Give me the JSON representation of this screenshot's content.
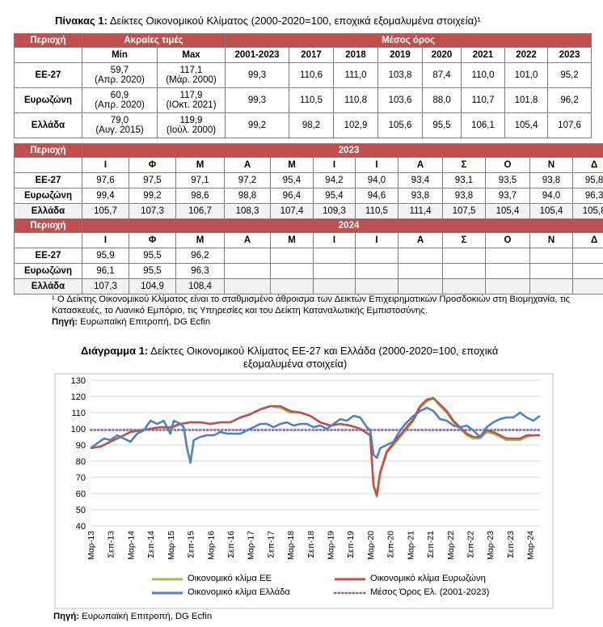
{
  "table": {
    "title_prefix": "Πίνακας 1:",
    "title_text": " Δείκτες Οικονομικού Κλίματος (2000-2020=100, εποχικά εξομαλυμένα στοιχεία)¹",
    "header": {
      "region": "Περιοχή",
      "extremes": "Ακραίες τιμές",
      "average": "Μέσος όρος"
    },
    "subheader": [
      "Min",
      "Max",
      "2001-2023",
      "2017",
      "2018",
      "2019",
      "2020",
      "2021",
      "2022",
      "2023"
    ],
    "rows": [
      {
        "region": "ΕΕ-27",
        "min_val": "59,7",
        "min_date": "(Απρ. 2020)",
        "max_val": "117,1",
        "max_date": "(Μάρ. 2000)",
        "values": [
          "99,3",
          "110,6",
          "111,0",
          "103,8",
          "87,4",
          "110,0",
          "101,0",
          "95,2"
        ]
      },
      {
        "region": "Ευρωζώνη",
        "min_val": "60,9",
        "min_date": "(Απρ. 2020)",
        "max_val": "117,9",
        "max_date": "(IΟκτ. 2021)",
        "values": [
          "99,3",
          "110,5",
          "110,8",
          "103,6",
          "88,0",
          "110,7",
          "101,8",
          "96,2"
        ]
      },
      {
        "region": "Ελλάδα",
        "min_val": "79,0",
        "min_date": "(Αυγ. 2015)",
        "max_val": "119,9",
        "max_date": "(Ιούλ. 2000)",
        "values": [
          "99,2",
          "98,2",
          "102,9",
          "105,6",
          "95,5",
          "106,1",
          "105,4",
          "107,6"
        ]
      }
    ],
    "section_2023": {
      "region": "Περιοχή",
      "year": "2023",
      "months": [
        "Ι",
        "Φ",
        "Μ",
        "Α",
        "Μ",
        "Ι",
        "Ι",
        "Α",
        "Σ",
        "Ο",
        "Ν",
        "Δ"
      ],
      "rows": [
        {
          "region": "ΕΕ-27",
          "values": [
            "97,6",
            "97,5",
            "97,1",
            "97,2",
            "95,4",
            "94,2",
            "94,0",
            "93,4",
            "93,1",
            "93,5",
            "93,8",
            "95,8"
          ]
        },
        {
          "region": "Ευρωζώνη",
          "values": [
            "99,4",
            "99,2",
            "98,6",
            "98,8",
            "96,4",
            "95,4",
            "94,6",
            "93,8",
            "93,8",
            "93,7",
            "94,0",
            "96,3"
          ]
        },
        {
          "region": "Ελλάδα",
          "values": [
            "105,7",
            "107,3",
            "106,7",
            "108,3",
            "107,4",
            "109,3",
            "110,5",
            "111,4",
            "107,5",
            "105,4",
            "105,4",
            "105,8"
          ]
        }
      ]
    },
    "section_2024": {
      "region": "Περιοχή",
      "year": "2024",
      "months": [
        "Ι",
        "Φ",
        "Μ",
        "Α",
        "Μ",
        "Ι",
        "Ι",
        "Α",
        "Σ",
        "Ο",
        "Ν",
        "Δ"
      ],
      "rows": [
        {
          "region": "ΕΕ-27",
          "values": [
            "95,9",
            "95,5",
            "96,2",
            "",
            "",
            "",
            "",
            "",
            "",
            "",
            "",
            ""
          ]
        },
        {
          "region": "Ευρωζώνη",
          "values": [
            "96,1",
            "95,5",
            "96,3",
            "",
            "",
            "",
            "",
            "",
            "",
            "",
            "",
            ""
          ]
        },
        {
          "region": "Ελλάδα",
          "values": [
            "107,3",
            "104,9",
            "108,4",
            "",
            "",
            "",
            "",
            "",
            "",
            "",
            "",
            ""
          ]
        }
      ]
    },
    "footnote": "¹ Ο Δείκτης Οικονομικού Κλίματος είναι το σταθμισμένο άθροισμα των Δεικτών Επιχειρηματικών Προσδοκιών στη Βιομηχανία, τις Κατασκευές, το Λιανικό Εμπόριο, τις Υπηρεσίες και του Δείκτη Καταναλωτικής Εμπιστοσύνης.",
    "source_label": "Πηγή:",
    "source_text": " Ευρωπαϊκή Επιτροπή, DG Ecfin"
  },
  "chart_title_prefix": "Διάγραμμα 1:",
  "chart_title_line1": " Δείκτες Οικονομικού Κλίματος ΕΕ-27 και Ελλάδα (2000-2020=100, εποχικά",
  "chart_title_line2": "εξομαλυμένα στοιχεία)",
  "chart_source_label": "Πηγή:",
  "chart_source_text": " Ευρωπαϊκή Επιτροπή, DG Ecfin",
  "colors": {
    "header_bg": "#c0504d",
    "eu": "#9bbb59",
    "ez": "#c0504d",
    "gr": "#4f81bd",
    "avg": "#8064a2"
  },
  "chart_data": {
    "type": "line",
    "x_tick_labels": [
      "Μαρ-13",
      "Σεπ-13",
      "Μαρ-14",
      "Σεπ-14",
      "Μαρ-15",
      "Σεπ-15",
      "Μαρ-16",
      "Σεπ-16",
      "Μαρ-17",
      "Σεπ-17",
      "Μαρ-18",
      "Σεπ-18",
      "Μαρ-19",
      "Σεπ-19",
      "Μαρ-20",
      "Σεπ-20",
      "Μαρ-21",
      "Σεπ-21",
      "Μαρ-22",
      "Σεπ-22",
      "Μαρ-23",
      "Σεπ-23",
      "Μαρ-24"
    ],
    "y_ticks": [
      40,
      50,
      60,
      70,
      80,
      90,
      100,
      110,
      120,
      130
    ],
    "ylim": [
      40,
      130
    ],
    "grid": true,
    "legend_position": "bottom",
    "series": [
      {
        "name": "Οικονομικό κλίμα ΕΕ",
        "color": "#9bbb59",
        "style": "solid",
        "points": [
          [
            0,
            88
          ],
          [
            3,
            89
          ],
          [
            6,
            92
          ],
          [
            9,
            95
          ],
          [
            12,
            98
          ],
          [
            15,
            99
          ],
          [
            18,
            100
          ],
          [
            21,
            101
          ],
          [
            24,
            100
          ],
          [
            27,
            103
          ],
          [
            30,
            104
          ],
          [
            33,
            104
          ],
          [
            36,
            103
          ],
          [
            39,
            104
          ],
          [
            42,
            104
          ],
          [
            45,
            107
          ],
          [
            48,
            109
          ],
          [
            51,
            112
          ],
          [
            54,
            114
          ],
          [
            57,
            113
          ],
          [
            60,
            110
          ],
          [
            63,
            110
          ],
          [
            66,
            108
          ],
          [
            69,
            104
          ],
          [
            72,
            102
          ],
          [
            75,
            103
          ],
          [
            78,
            102
          ],
          [
            81,
            100
          ],
          [
            84,
            96
          ],
          [
            85,
            65
          ],
          [
            86,
            58
          ],
          [
            87,
            72
          ],
          [
            89,
            85
          ],
          [
            91,
            90
          ],
          [
            93,
            95
          ],
          [
            95,
            100
          ],
          [
            97,
            105
          ],
          [
            99,
            113
          ],
          [
            101,
            117
          ],
          [
            103,
            119
          ],
          [
            105,
            114
          ],
          [
            107,
            110
          ],
          [
            109,
            104
          ],
          [
            111,
            100
          ],
          [
            113,
            96
          ],
          [
            115,
            94
          ],
          [
            117,
            94
          ],
          [
            119,
            98
          ],
          [
            121,
            97
          ],
          [
            123,
            95
          ],
          [
            125,
            93
          ],
          [
            127,
            93
          ],
          [
            129,
            93
          ],
          [
            131,
            95
          ],
          [
            133,
            96
          ],
          [
            135,
            96
          ]
        ]
      },
      {
        "name": "Οικονομικό κλίμα Ευρωζώνη",
        "color": "#c0504d",
        "style": "solid",
        "points": [
          [
            0,
            88
          ],
          [
            3,
            89
          ],
          [
            6,
            92
          ],
          [
            9,
            95
          ],
          [
            12,
            98
          ],
          [
            15,
            99
          ],
          [
            18,
            100
          ],
          [
            21,
            101
          ],
          [
            24,
            101
          ],
          [
            27,
            103
          ],
          [
            30,
            104
          ],
          [
            33,
            104
          ],
          [
            36,
            103
          ],
          [
            39,
            104
          ],
          [
            42,
            104
          ],
          [
            45,
            107
          ],
          [
            48,
            109
          ],
          [
            51,
            112
          ],
          [
            54,
            114
          ],
          [
            57,
            114
          ],
          [
            60,
            111
          ],
          [
            63,
            110
          ],
          [
            66,
            108
          ],
          [
            69,
            104
          ],
          [
            72,
            102
          ],
          [
            75,
            103
          ],
          [
            78,
            102
          ],
          [
            81,
            100
          ],
          [
            84,
            96
          ],
          [
            85,
            65
          ],
          [
            86,
            59
          ],
          [
            87,
            73
          ],
          [
            89,
            86
          ],
          [
            91,
            91
          ],
          [
            93,
            96
          ],
          [
            95,
            101
          ],
          [
            97,
            106
          ],
          [
            99,
            114
          ],
          [
            101,
            118
          ],
          [
            103,
            119
          ],
          [
            105,
            115
          ],
          [
            107,
            111
          ],
          [
            109,
            105
          ],
          [
            111,
            101
          ],
          [
            113,
            97
          ],
          [
            115,
            95
          ],
          [
            117,
            95
          ],
          [
            119,
            99
          ],
          [
            121,
            98
          ],
          [
            123,
            96
          ],
          [
            125,
            94
          ],
          [
            127,
            94
          ],
          [
            129,
            94
          ],
          [
            131,
            96
          ],
          [
            133,
            96
          ],
          [
            135,
            96
          ]
        ]
      },
      {
        "name": "Οικονομικό κλίμα Ελλάδα",
        "color": "#4f81bd",
        "style": "solid",
        "points": [
          [
            0,
            88
          ],
          [
            2,
            91
          ],
          [
            4,
            94
          ],
          [
            6,
            93
          ],
          [
            8,
            96
          ],
          [
            10,
            94
          ],
          [
            12,
            92
          ],
          [
            14,
            97
          ],
          [
            16,
            99
          ],
          [
            18,
            105
          ],
          [
            20,
            103
          ],
          [
            22,
            105
          ],
          [
            24,
            97
          ],
          [
            25,
            105
          ],
          [
            27,
            103
          ],
          [
            28,
            101
          ],
          [
            29,
            88
          ],
          [
            30,
            79
          ],
          [
            31,
            93
          ],
          [
            33,
            95
          ],
          [
            35,
            96
          ],
          [
            37,
            96
          ],
          [
            39,
            98
          ],
          [
            41,
            97
          ],
          [
            43,
            97
          ],
          [
            45,
            97
          ],
          [
            47,
            99
          ],
          [
            49,
            101
          ],
          [
            51,
            103
          ],
          [
            53,
            103
          ],
          [
            55,
            101
          ],
          [
            57,
            103
          ],
          [
            59,
            104
          ],
          [
            61,
            102
          ],
          [
            63,
            103
          ],
          [
            65,
            103
          ],
          [
            67,
            101
          ],
          [
            69,
            102
          ],
          [
            71,
            100
          ],
          [
            73,
            103
          ],
          [
            75,
            106
          ],
          [
            77,
            105
          ],
          [
            79,
            108
          ],
          [
            81,
            107
          ],
          [
            83,
            101
          ],
          [
            84,
            99
          ],
          [
            85,
            84
          ],
          [
            86,
            82
          ],
          [
            87,
            88
          ],
          [
            89,
            90
          ],
          [
            91,
            92
          ],
          [
            93,
            99
          ],
          [
            95,
            104
          ],
          [
            97,
            108
          ],
          [
            99,
            111
          ],
          [
            101,
            113
          ],
          [
            103,
            111
          ],
          [
            105,
            106
          ],
          [
            107,
            105
          ],
          [
            109,
            102
          ],
          [
            111,
            101
          ],
          [
            113,
            102
          ],
          [
            115,
            99
          ],
          [
            117,
            95
          ],
          [
            119,
            101
          ],
          [
            121,
            104
          ],
          [
            123,
            106
          ],
          [
            125,
            107
          ],
          [
            127,
            107
          ],
          [
            129,
            110
          ],
          [
            131,
            107
          ],
          [
            133,
            105
          ],
          [
            135,
            108
          ]
        ]
      },
      {
        "name": "Μέσος Όρος Ελ. (2001-2023)",
        "color": "#8064a2",
        "style": "dotted",
        "points": [
          [
            0,
            99.2
          ],
          [
            135,
            99.2
          ]
        ]
      }
    ]
  }
}
